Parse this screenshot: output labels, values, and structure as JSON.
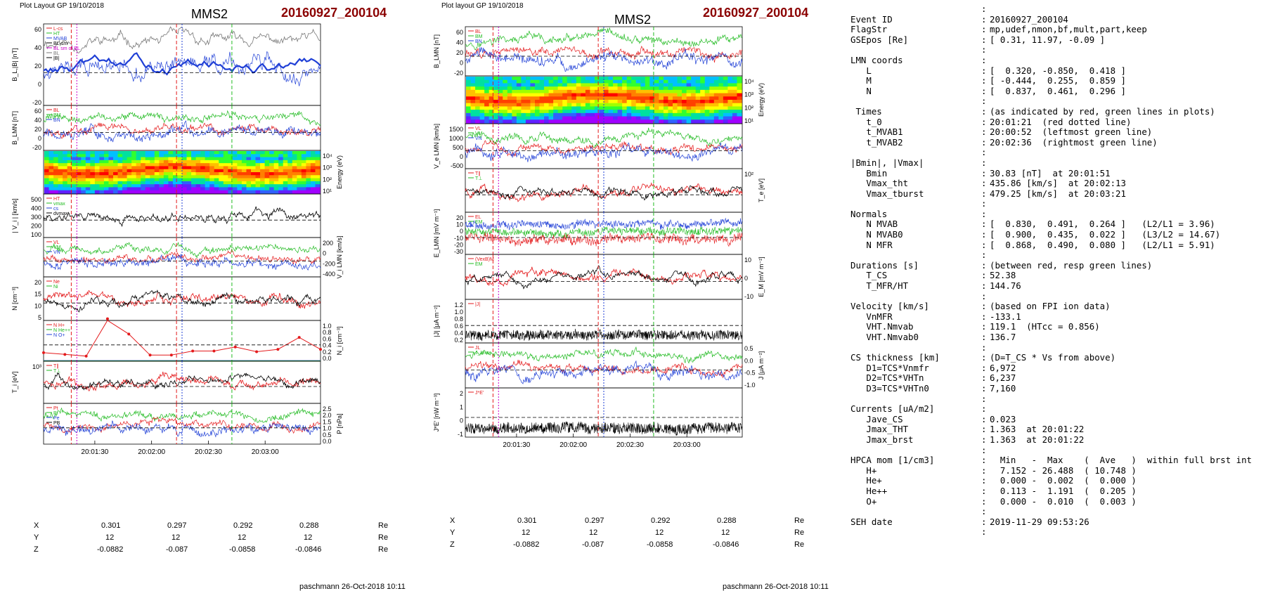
{
  "left": {
    "layout_label": "Plot Layout GP 19/10/2018",
    "spacecraft": "MMS2",
    "event_id": "20160927_200104",
    "footer": "paschmann 26-Oct-2018 10:11",
    "time_ticks": [
      "20:01:30",
      "20:02:00",
      "20:02:30",
      "20:03:00"
    ],
    "panels": [
      {
        "ylabel": "B_L,|B| [nT]",
        "ticks": [
          "60",
          "40",
          "20",
          "0",
          "-20"
        ],
        "legend": [
          "L-cs",
          "HT",
          "MVAB",
          "BL-sm",
          "BL sm of BL",
          "BL",
          "|B|"
        ]
      },
      {
        "ylabel": "B_LMN [nT]",
        "ticks": [
          "60",
          "40",
          "20",
          "0",
          "-20"
        ],
        "legend": [
          "BL",
          "BM",
          "BN"
        ]
      },
      {
        "ylabel": "Energy (eV)",
        "right_ticks": [
          "10⁴",
          "10³",
          "10²",
          "10¹"
        ]
      },
      {
        "ylabel": "| V_i | [km/s]",
        "ticks": [
          "500",
          "400",
          "300",
          "200",
          "100"
        ],
        "legend": [
          "HT",
          "vmax",
          "cs",
          "dvmax"
        ]
      },
      {
        "ylabel": "V_i LMN [km/s]",
        "right_ticks": [
          "200",
          "0",
          "-200",
          "-400"
        ],
        "legend": [
          "VL",
          "VM",
          "VN"
        ]
      },
      {
        "ylabel": "N [cm⁻³]",
        "ticks": [
          "20",
          "15",
          "10",
          "5"
        ],
        "legend": [
          "Ne",
          "Ni"
        ]
      },
      {
        "ylabel": "N_i [cm⁻³]",
        "right_ticks": [
          "1.0",
          "0.8",
          "0.6",
          "0.4",
          "0.2",
          "0.0"
        ],
        "legend": [
          "N H+",
          "N He++",
          "N O+"
        ]
      },
      {
        "ylabel": "T_i [eV]",
        "ticks": [
          "10³"
        ],
        "legend": [
          "T∥",
          "T⊥"
        ]
      },
      {
        "ylabel": "P [nPa]",
        "right_ticks": [
          "2.5",
          "2.0",
          "1.5",
          "1.0",
          "0.5",
          "0.0"
        ],
        "legend": [
          "Pt",
          "Pi",
          "Pe",
          "PB"
        ]
      }
    ]
  },
  "middle": {
    "layout_label": "Plot layout GP 19/10/2018",
    "spacecraft": "MMS2",
    "event_id": "20160927_200104",
    "footer": "paschmann 26-Oct-2018 10:11",
    "time_ticks": [
      "20:01:30",
      "20:02:00",
      "20:02:30",
      "20:03:00"
    ],
    "panels": [
      {
        "ylabel": "B_LMN [nT]",
        "ticks": [
          "60",
          "40",
          "20",
          "0",
          "-20"
        ],
        "legend": [
          "BL",
          "BM",
          "BN"
        ]
      },
      {
        "ylabel": "Energy (eV)",
        "right_ticks": [
          "10⁴",
          "10³",
          "10²",
          "10¹"
        ]
      },
      {
        "ylabel": "V_e LMN [km/s]",
        "ticks": [
          "1500",
          "1000",
          "500",
          "0",
          "-500"
        ],
        "legend": [
          "VL",
          "VM",
          "VN"
        ]
      },
      {
        "ylabel": "T_e [eV]",
        "right_ticks": [
          "10²"
        ],
        "legend": [
          "T∥",
          "T⊥"
        ]
      },
      {
        "ylabel": "E_LMN [mV m⁻¹]",
        "ticks": [
          "20",
          "10",
          "0",
          "-10",
          "-20",
          "-30"
        ],
        "legend": [
          "EL",
          "EM",
          "EN"
        ]
      },
      {
        "ylabel": "E_M [mV m⁻²]",
        "right_ticks": [
          "10",
          "0",
          "-10"
        ],
        "legend": [
          "(VexB)M",
          "EM"
        ]
      },
      {
        "ylabel": "|J| [μA m⁻²]",
        "ticks": [
          "1.2",
          "1.0",
          "0.8",
          "0.6",
          "0.4",
          "0.2"
        ],
        "legend": [
          "|J|"
        ]
      },
      {
        "ylabel": "J [μA m⁻²]",
        "right_ticks": [
          "0.5",
          "0.0",
          "-0.5",
          "-1.0"
        ],
        "legend": [
          "JL",
          "J_Imax"
        ]
      },
      {
        "ylabel": "J*E' [nW m⁻³]",
        "ticks": [
          "2",
          "1",
          "0",
          "-1"
        ],
        "legend": [
          "J*E'"
        ]
      }
    ]
  },
  "position_table": {
    "rows": [
      {
        "label": "X",
        "values": [
          "0.301",
          "0.297",
          "0.292",
          "0.288"
        ],
        "unit": "Re"
      },
      {
        "label": "Y",
        "values": [
          "12",
          "12",
          "12",
          "12"
        ],
        "unit": "Re"
      },
      {
        "label": "Z",
        "values": [
          "-0.0882",
          "-0.087",
          "-0.0858",
          "-0.0846"
        ],
        "unit": "Re"
      }
    ]
  },
  "info": [
    [
      "",
      ":",
      ""
    ],
    [
      "Event ID",
      ":",
      "20160927_200104"
    ],
    [
      "FlagStr",
      ":",
      "mp,udef,nmon,bf,mult,part,keep"
    ],
    [
      "GSEpos [Re]",
      ":",
      "[ 0.31, 11.97, -0.09 ]"
    ],
    [
      "",
      ":",
      ""
    ],
    [
      "LMN coords",
      ":",
      ""
    ],
    [
      "   L",
      ":",
      "[  0.320, -0.850,  0.418 ]"
    ],
    [
      "   M",
      ":",
      "[ -0.444,  0.255,  0.859 ]"
    ],
    [
      "   N",
      ":",
      "[  0.837,  0.461,  0.296 ]"
    ],
    [
      "",
      ":",
      ""
    ],
    [
      " Times",
      ":",
      "(as indicated by red, green lines in plots)"
    ],
    [
      "   t_0",
      ":",
      "20:01:21  (red dotted line)"
    ],
    [
      "   t_MVAB1",
      ":",
      "20:00:52  (leftmost green line)"
    ],
    [
      "   t_MVAB2",
      ":",
      "20:02:36  (rightmost green line)"
    ],
    [
      "",
      ":",
      ""
    ],
    [
      "|Bmin|, |Vmax|",
      ":",
      ""
    ],
    [
      "   Bmin",
      ":",
      "30.83 [nT]  at 20:01:51"
    ],
    [
      "   Vmax_tht",
      ":",
      "435.86 [km/s]  at 20:02:13"
    ],
    [
      "   Vmax_tburst",
      ":",
      "479.25 [km/s]  at 20:03:21"
    ],
    [
      "",
      ":",
      ""
    ],
    [
      "Normals",
      ":",
      ""
    ],
    [
      "   N MVAB",
      ":",
      "[  0.830,  0.491,  0.264 ]   (L2/L1 = 3.96)"
    ],
    [
      "   N MVAB0",
      ":",
      "[  0.900,  0.435,  0.022 ]   (L3/L2 = 14.67)"
    ],
    [
      "   N MFR",
      ":",
      "[  0.868,  0.490,  0.080 ]   (L2/L1 = 5.91)"
    ],
    [
      "",
      ":",
      ""
    ],
    [
      "Durations [s]",
      ":",
      "(between red, resp green lines)"
    ],
    [
      "   T_CS",
      ":",
      "52.38"
    ],
    [
      "   T_MFR/HT",
      ":",
      "144.76"
    ],
    [
      "",
      ":",
      ""
    ],
    [
      "Velocity [km/s]",
      ":",
      "(based on FPI ion data)"
    ],
    [
      "   VnMFR",
      ":",
      "-133.1"
    ],
    [
      "   VHT.Nmvab",
      ":",
      "119.1  (HTcc = 0.856)"
    ],
    [
      "   VHT.Nmvab0",
      ":",
      "136.7"
    ],
    [
      "",
      ":",
      ""
    ],
    [
      "CS thickness [km]",
      ":",
      "(D=T_CS * Vs from above)"
    ],
    [
      "   D1=TCS*Vnmfr",
      ":",
      "6,972"
    ],
    [
      "   D2=TCS*VHTn",
      ":",
      "6,237"
    ],
    [
      "   D3=TCS*VHTn0",
      ":",
      "7,160"
    ],
    [
      "",
      ":",
      ""
    ],
    [
      "Currents [uA/m2]",
      ":",
      ""
    ],
    [
      "   Jave_CS",
      ":",
      "0.023"
    ],
    [
      "   Jmax_THT",
      ":",
      "1.363  at 20:01:22"
    ],
    [
      "   Jmax_brst",
      ":",
      "1.363  at 20:01:22"
    ],
    [
      "",
      ":",
      ""
    ],
    [
      "HPCA mom [1/cm3]",
      ":",
      "  Min   -  Max    (  Ave   )  within full brst int"
    ],
    [
      "   H+",
      ":",
      "  7.152 - 26.488  ( 10.748 )"
    ],
    [
      "   He+",
      ":",
      "  0.000 -  0.002  (  0.000 )"
    ],
    [
      "   He++",
      ":",
      "  0.113 -  1.191  (  0.205 )"
    ],
    [
      "   O+",
      ":",
      "  0.000 -  0.010  (  0.003 )"
    ],
    [
      "",
      ":",
      ""
    ],
    [
      "SEH date",
      ":",
      "2019-11-29 09:53:26"
    ],
    [
      "",
      ":",
      ""
    ]
  ],
  "colors": {
    "event": "#8b0000",
    "red": "#e41a1c",
    "green": "#22bb22",
    "blue": "#1f3fd6",
    "black": "#000000",
    "gray": "#777777",
    "magenta": "#cc00cc"
  },
  "chart_data": [
    {
      "type": "line",
      "title": "MMS2 20160927_200104",
      "x_ticks": [
        "20:01:30",
        "20:02:00",
        "20:02:30",
        "20:03:00"
      ],
      "panels": [
        {
          "name": "B_L,|B| [nT]",
          "ylim": [
            -30,
            70
          ],
          "series": [
            "BL",
            "|B|",
            "BL sm"
          ]
        },
        {
          "name": "B_LMN [nT]",
          "ylim": [
            -30,
            65
          ],
          "series": [
            "BL",
            "BM",
            "BN"
          ]
        },
        {
          "name": "Energy (eV)",
          "type": "heatmap",
          "ylim": [
            10,
            20000
          ],
          "log": true
        },
        {
          "name": "| V_i | [km/s]",
          "ylim": [
            60,
            500
          ]
        },
        {
          "name": "V_i LMN [km/s]",
          "ylim": [
            -420,
            260
          ]
        },
        {
          "name": "N [cm⁻³]",
          "ylim": [
            2,
            21
          ]
        },
        {
          "name": "N_i [cm⁻³]",
          "ylim": [
            0,
            1.2
          ],
          "series": [
            {
              "name": "N H+",
              "values": [
                0.25,
                0.2,
                0.15,
                1.25,
                0.8,
                0.18,
                0.18,
                0.3,
                0.3,
                0.42,
                0.28,
                0.35,
                0.7,
                0.35
              ]
            }
          ]
        },
        {
          "name": "T_i [eV]",
          "log": true
        },
        {
          "name": "P [nPa]",
          "ylim": [
            0,
            2.6
          ]
        }
      ]
    },
    {
      "type": "line",
      "title": "MMS2 20160927_200104",
      "x_ticks": [
        "20:01:30",
        "20:02:00",
        "20:02:30",
        "20:03:00"
      ],
      "panels": [
        {
          "name": "B_LMN [nT]",
          "ylim": [
            -30,
            65
          ]
        },
        {
          "name": "Energy (eV)",
          "type": "heatmap",
          "log": true
        },
        {
          "name": "V_e LMN [km/s]",
          "ylim": [
            -600,
            1800
          ]
        },
        {
          "name": "T_e [eV]",
          "log": true
        },
        {
          "name": "E_LMN [mV m⁻¹]",
          "ylim": [
            -32,
            24
          ]
        },
        {
          "name": "E_M [mV m⁻²]",
          "ylim": [
            -14,
            14
          ]
        },
        {
          "name": "|J| [μA m⁻²]",
          "ylim": [
            0,
            1.3
          ]
        },
        {
          "name": "J [μA m⁻²]",
          "ylim": [
            -1.3,
            0.7
          ]
        },
        {
          "name": "J*E' [nW m⁻³]",
          "ylim": [
            -1.6,
            2.4
          ]
        }
      ]
    }
  ]
}
